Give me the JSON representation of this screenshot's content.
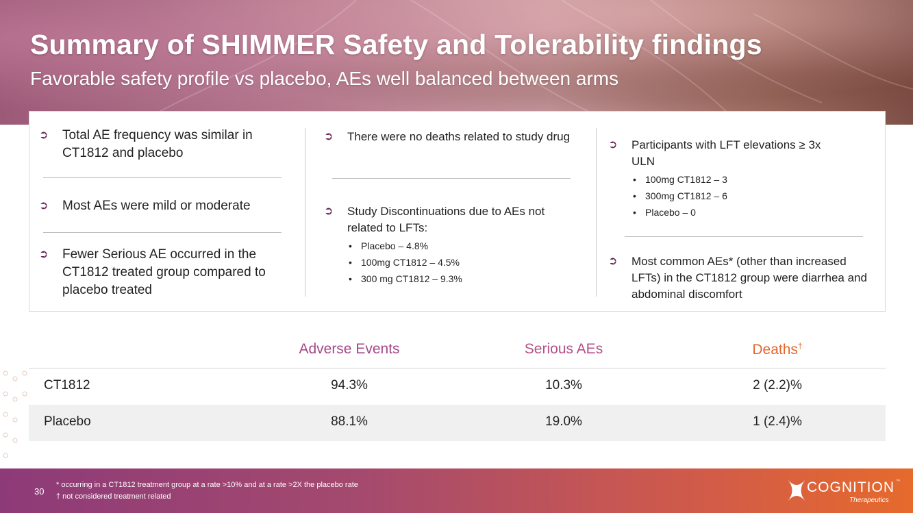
{
  "header": {
    "title": "Summary of SHIMMER Safety and Tolerability findings",
    "subtitle": "Favorable safety profile vs placebo, AEs well balanced between arms"
  },
  "findings": {
    "col1": [
      {
        "text": "Total AE frequency was similar in CT1812 and placebo"
      },
      {
        "text": "Most AEs were mild or moderate"
      },
      {
        "text": "Fewer Serious AE occurred in the CT1812 treated group compared to placebo treated"
      }
    ],
    "col2": [
      {
        "text": "There were no deaths related to study drug"
      },
      {
        "text": "Study Discontinuations due to AEs not related to LFTs:",
        "items": [
          "Placebo – 4.8%",
          "100mg CT1812 – 4.5%",
          "300 mg CT1812 – 9.3%"
        ]
      }
    ],
    "col3": [
      {
        "text": "Participants with LFT elevations ≥ 3x ULN",
        "items": [
          "100mg CT1812 – 3",
          "300mg CT1812 – 6",
          "Placebo – 0"
        ]
      },
      {
        "text": "Most common AEs* (other than increased LFTs) in the CT1812 group were diarrhea and abdominal discomfort"
      }
    ]
  },
  "table": {
    "headers": [
      "Adverse Events",
      "Serious AEs",
      "Deaths",
      "†"
    ],
    "rows": [
      {
        "label": "CT1812",
        "values": [
          "94.3%",
          "10.3%",
          "2 (2.2)%"
        ]
      },
      {
        "label": "Placebo",
        "values": [
          "88.1%",
          "19.0%",
          "1 (2.4)%"
        ]
      }
    ]
  },
  "colors": {
    "adverse": "#a6478a",
    "serious": "#b4508a",
    "deaths": "#e3672d"
  },
  "footer": {
    "page_number": "30",
    "notes": [
      "* occurring in a CT1812 treatment group at a rate >10% and at a rate >2X the placebo rate",
      "† not considered treatment related"
    ],
    "logo": {
      "name": "COGNITION",
      "tagline": "Therapeutics",
      "tm": "™"
    }
  }
}
